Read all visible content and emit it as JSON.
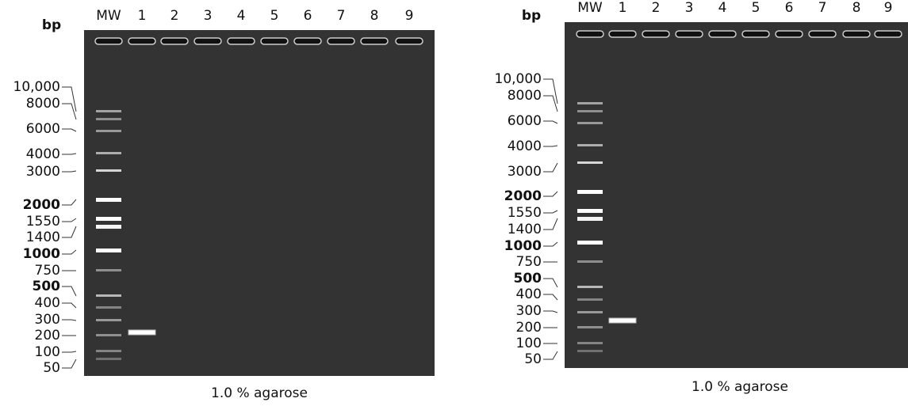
{
  "gels": [
    {
      "unit": "bp",
      "lanes": [
        "MW",
        "1",
        "2",
        "3",
        "4",
        "5",
        "6",
        "7",
        "8",
        "9"
      ],
      "markers": [
        {
          "label": "10,000"
        },
        {
          "label": "8000"
        },
        {
          "label": "6000"
        },
        {
          "label": "4000"
        },
        {
          "label": "3000"
        },
        {
          "label": "2000",
          "bold": true
        },
        {
          "label": "1550"
        },
        {
          "label": "1400"
        },
        {
          "label": "1000",
          "bold": true
        },
        {
          "label": "750"
        },
        {
          "label": "500",
          "bold": true
        },
        {
          "label": "400"
        },
        {
          "label": "300"
        },
        {
          "label": "200"
        },
        {
          "label": "100"
        },
        {
          "label": "50"
        }
      ],
      "caption": "1.0 % agarose"
    },
    {
      "unit": "bp",
      "lanes": [
        "MW",
        "1",
        "2",
        "3",
        "4",
        "5",
        "6",
        "7",
        "8",
        "9"
      ],
      "markers": [
        {
          "label": "10,000"
        },
        {
          "label": "8000"
        },
        {
          "label": "6000"
        },
        {
          "label": "4000"
        },
        {
          "label": "3000"
        },
        {
          "label": "2000",
          "bold": true
        },
        {
          "label": "1550"
        },
        {
          "label": "1400"
        },
        {
          "label": "1000",
          "bold": true
        },
        {
          "label": "750"
        },
        {
          "label": "500",
          "bold": true
        },
        {
          "label": "400"
        },
        {
          "label": "300"
        },
        {
          "label": "200"
        },
        {
          "label": "100"
        },
        {
          "label": "50"
        }
      ],
      "caption": "1.0 % agarose"
    }
  ]
}
